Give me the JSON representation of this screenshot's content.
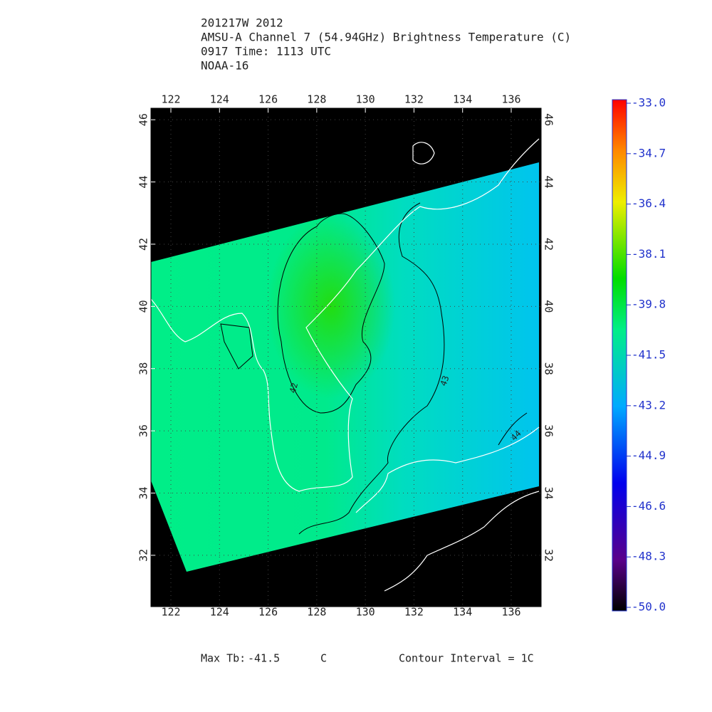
{
  "header": {
    "lines": [
      "201217W 2012",
      "AMSU-A Channel 7 (54.94GHz) Brightness Temperature (C)",
      "0917 Time: 1113 UTC",
      "NOAA-16"
    ]
  },
  "map": {
    "lonlim": [
      121.18,
      137.23
    ],
    "latlim": [
      30.35,
      46.37
    ],
    "lon_ticks": [
      122,
      124,
      126,
      128,
      130,
      132,
      134,
      136
    ],
    "lat_ticks": [
      32,
      34,
      36,
      38,
      40,
      42,
      44,
      46
    ],
    "contour_labels": [
      "42",
      "43",
      "44"
    ]
  },
  "colorbar": {
    "lim": [
      -50,
      -33
    ],
    "ticks": [
      {
        "value": -33,
        "label": "-33.0"
      },
      {
        "value": -34.7,
        "label": "-34.7"
      },
      {
        "value": -36.4,
        "label": "-36.4"
      },
      {
        "value": -38.1,
        "label": "-38.1"
      },
      {
        "value": -39.8,
        "label": "-39.8"
      },
      {
        "value": -41.5,
        "label": "-41.5"
      },
      {
        "value": -43.2,
        "label": "-43.2"
      },
      {
        "value": -44.9,
        "label": "-44.9"
      },
      {
        "value": -46.6,
        "label": "-46.6"
      },
      {
        "value": -48.3,
        "label": "-48.3"
      },
      {
        "value": -50,
        "label": "-50.0"
      }
    ]
  },
  "footer": {
    "max_label": "Max Tb:",
    "max_value": -41.5,
    "unit": "C",
    "contour_interval": "Contour Interval = 1C"
  }
}
